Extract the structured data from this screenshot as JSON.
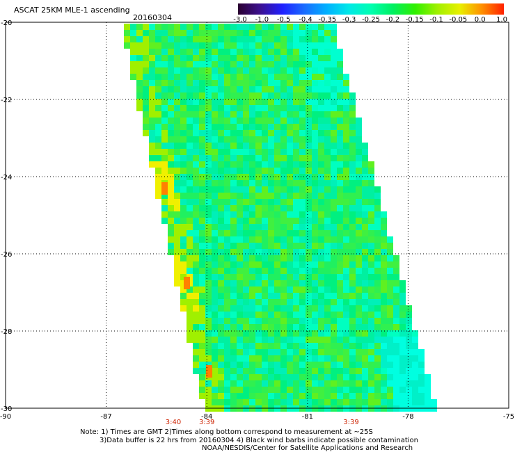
{
  "header": {
    "title": "ASCAT 25KM MLE-1 ascending",
    "date": "20160304"
  },
  "colorbar": {
    "labels": [
      "-3.0",
      "-1.0",
      "-0.5",
      "-0.4",
      "-0.35",
      "-0.3",
      "-0.25",
      "-0.2",
      "-0.15",
      "-0.1",
      "-0.05",
      "0.0",
      "1.0"
    ],
    "colors": [
      "#2a0030",
      "#3c1090",
      "#2020ff",
      "#1a6cff",
      "#00b0ff",
      "#00e8e8",
      "#00ffb0",
      "#00f060",
      "#30f000",
      "#a0f000",
      "#e8f000",
      "#ff9000",
      "#ff2000"
    ]
  },
  "map": {
    "lon_ticks": [
      "-90",
      "-87",
      "-84",
      "-81",
      "-78",
      "-75"
    ],
    "lat_ticks": [
      "-20",
      "-22",
      "-24",
      "-26",
      "-28",
      "-30"
    ],
    "lon_range": [
      -90,
      -75
    ],
    "lat_range": [
      -20,
      -30
    ],
    "grid": "dotted"
  },
  "times": [
    {
      "label": "3:40",
      "lon": -85.0
    },
    {
      "label": "3:39",
      "lon": -84.0
    },
    {
      "label": "3:39",
      "lon": -79.7
    }
  ],
  "notes": {
    "line1": "Note: 1) Times are GMT 2)Times along bottom correspond to measurement at ~25S",
    "line2": "3)Data buffer is 22 hrs from 20160304 4) Black wind barbs indicate possible contamination",
    "line3": "NOAA/NESDIS/Center for Satellite Applications and Research"
  },
  "colors": {
    "time_label": "#cc2200",
    "grid": "#000000"
  }
}
